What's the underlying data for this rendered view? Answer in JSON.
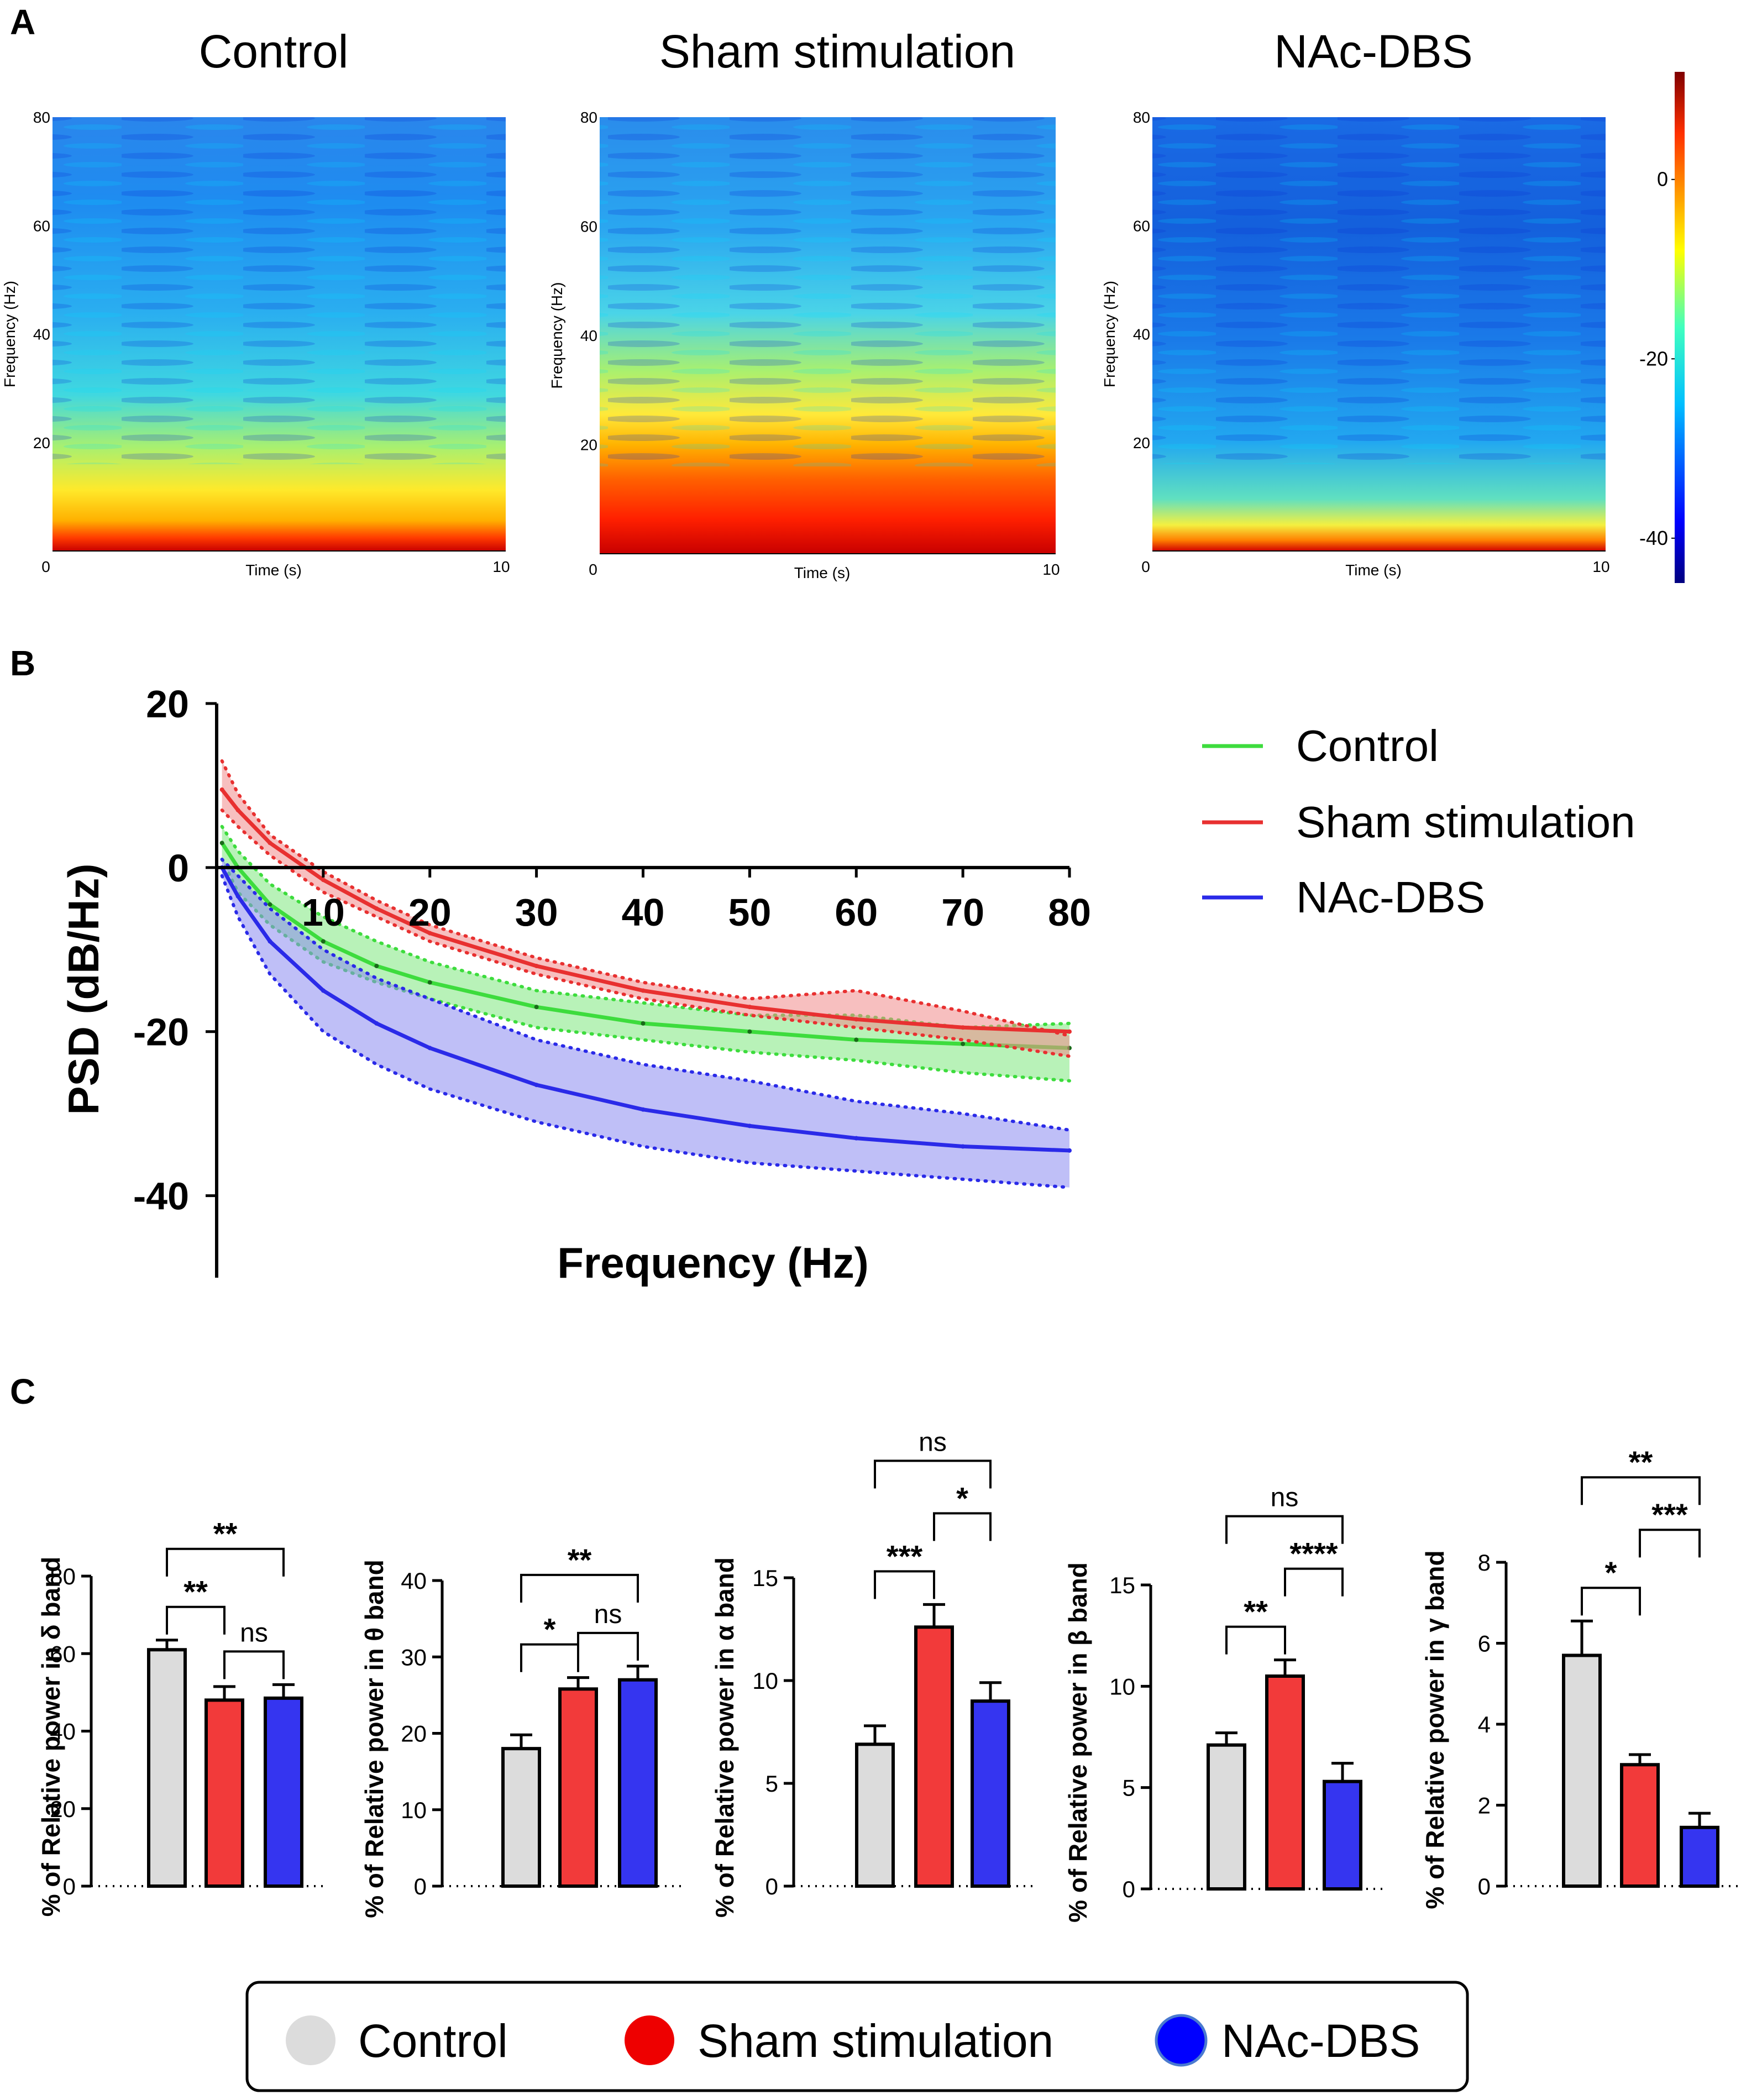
{
  "panel_letters": {
    "a": "A",
    "b": "B",
    "c": "C"
  },
  "colors": {
    "control": "#dcdcdc",
    "sham": "#f23a3a",
    "dbs": "#3535f0",
    "control_line": "#3ddc3d",
    "sham_line": "#e83030",
    "dbs_line": "#2a2ae8"
  },
  "chart_data": [
    {
      "type": "heatmap",
      "panel": "A",
      "subplots": [
        {
          "title": "Control",
          "low_freq_power": "high",
          "band_top_hz": 8
        },
        {
          "title": "Sham stimulation",
          "low_freq_power": "very high",
          "band_top_hz": 20
        },
        {
          "title": "NAc-DBS",
          "low_freq_power": "moderate",
          "band_top_hz": 5
        }
      ],
      "xlabel": "Time (s)",
      "ylabel": "Frequency (Hz)",
      "x_ticks": [
        "0",
        "10"
      ],
      "y_ticks": [
        "20",
        "40",
        "60",
        "80"
      ],
      "xlim": [
        0,
        10
      ],
      "ylim": [
        0,
        80
      ],
      "colorbar": {
        "ticks": [
          "0",
          "-20",
          "-40"
        ],
        "range": [
          -45,
          12
        ],
        "colormap": "jet"
      }
    },
    {
      "type": "line",
      "panel": "B",
      "xlabel": "Frequency (Hz)",
      "ylabel": "PSD (dB/Hz)",
      "xlim": [
        0,
        80
      ],
      "ylim": [
        -50,
        20
      ],
      "x_ticks": [
        "10",
        "20",
        "30",
        "40",
        "50",
        "60",
        "70",
        "80"
      ],
      "y_ticks": [
        "20",
        "0",
        "-20",
        "-40"
      ],
      "x": [
        0.5,
        2,
        5,
        10,
        15,
        20,
        30,
        40,
        50,
        60,
        70,
        80
      ],
      "series": [
        {
          "name": "Control",
          "values": [
            3,
            0,
            -4.5,
            -9,
            -12,
            -14,
            -17,
            -19,
            -20,
            -21,
            -21.5,
            -22
          ],
          "upper": [
            5,
            2,
            -2,
            -6,
            -9,
            -11.5,
            -15,
            -16.5,
            -18,
            -18,
            -19.5,
            -19
          ],
          "lower": [
            1,
            -3,
            -7,
            -11.5,
            -14,
            -16,
            -19.5,
            -21,
            -22.5,
            -23.5,
            -25,
            -26
          ]
        },
        {
          "name": "Sham stimulation",
          "values": [
            9.5,
            7,
            3,
            -1.5,
            -5,
            -8,
            -12,
            -15,
            -17,
            -18.5,
            -19.5,
            -20
          ],
          "upper": [
            13,
            9,
            4,
            -0.5,
            -4,
            -7,
            -11,
            -14,
            -16,
            -15,
            -17.5,
            -20.5
          ],
          "lower": [
            7,
            5,
            1.5,
            -3,
            -6,
            -9,
            -13,
            -16,
            -18,
            -19.5,
            -21,
            -23
          ]
        },
        {
          "name": "NAc-DBS",
          "values": [
            0,
            -3.5,
            -9,
            -15,
            -19,
            -22,
            -26.5,
            -29.5,
            -31.5,
            -33,
            -34,
            -34.5
          ],
          "upper": [
            1,
            -1,
            -5,
            -10,
            -13.5,
            -16,
            -21,
            -24,
            -26,
            -28.5,
            -30,
            -32
          ],
          "lower": [
            -1,
            -6,
            -13,
            -20,
            -24,
            -27,
            -31,
            -34,
            -36,
            -37,
            -38,
            -39
          ]
        }
      ],
      "legend": [
        "Control",
        "Sham stimulation",
        "NAc-DBS"
      ]
    },
    {
      "type": "bar",
      "panel": "C",
      "categories": [
        "Control",
        "Sham stimulation",
        "NAc-DBS"
      ],
      "subplots": [
        {
          "ylabel": "% of Relative power in δ band",
          "ylim": [
            0,
            80
          ],
          "yticks": [
            "0",
            "20",
            "40",
            "60",
            "80"
          ],
          "values": [
            61,
            48,
            48.5
          ],
          "errors": [
            2.5,
            3.5,
            3.5
          ],
          "sig": [
            {
              "from": 0,
              "to": 1,
              "label": "**",
              "level": 1
            },
            {
              "from": 1,
              "to": 2,
              "label": "ns",
              "level": 1
            },
            {
              "from": 0,
              "to": 2,
              "label": "**",
              "level": 2
            }
          ]
        },
        {
          "ylabel": "% of Relative power in θ band",
          "ylim": [
            0,
            40
          ],
          "yticks": [
            "0",
            "10",
            "20",
            "30",
            "40"
          ],
          "values": [
            18,
            25.8,
            27
          ],
          "errors": [
            1.8,
            1.5,
            1.8
          ],
          "sig": [
            {
              "from": 0,
              "to": 1,
              "label": "*",
              "level": 1
            },
            {
              "from": 1,
              "to": 2,
              "label": "ns",
              "level": 1
            },
            {
              "from": 0,
              "to": 2,
              "label": "**",
              "level": 2
            }
          ]
        },
        {
          "ylabel": "% of Relative power in α band",
          "ylim": [
            0,
            15
          ],
          "yticks": [
            "0",
            "5",
            "10",
            "15"
          ],
          "values": [
            6.9,
            12.6,
            9
          ],
          "errors": [
            0.9,
            1.1,
            0.9
          ],
          "sig": [
            {
              "from": 0,
              "to": 1,
              "label": "***",
              "level": 1
            },
            {
              "from": 1,
              "to": 2,
              "label": "*",
              "level": 2
            },
            {
              "from": 0,
              "to": 2,
              "label": "ns",
              "level": 3
            }
          ]
        },
        {
          "ylabel": "% of Relative power in β band",
          "ylim": [
            0,
            15
          ],
          "yticks": [
            "0",
            "5",
            "10",
            "15"
          ],
          "values": [
            7.1,
            10.5,
            5.3
          ],
          "errors": [
            0.6,
            0.8,
            0.9
          ],
          "sig": [
            {
              "from": 0,
              "to": 1,
              "label": "**",
              "level": 1
            },
            {
              "from": 1,
              "to": 2,
              "label": "****",
              "level": 2
            },
            {
              "from": 0,
              "to": 2,
              "label": "ns",
              "level": 3
            }
          ]
        },
        {
          "ylabel": "% of Relative power in γ band",
          "ylim": [
            0,
            8
          ],
          "yticks": [
            "0",
            "2",
            "4",
            "6",
            "8"
          ],
          "values": [
            5.7,
            3,
            1.45
          ],
          "errors": [
            0.85,
            0.25,
            0.35
          ],
          "sig": [
            {
              "from": 0,
              "to": 1,
              "label": "*",
              "level": 1
            },
            {
              "from": 1,
              "to": 2,
              "label": "***",
              "level": 2
            },
            {
              "from": 0,
              "to": 2,
              "label": "**",
              "level": 3
            }
          ]
        }
      ],
      "legend": [
        "Control",
        "Sham stimulation",
        "NAc-DBS"
      ]
    }
  ]
}
